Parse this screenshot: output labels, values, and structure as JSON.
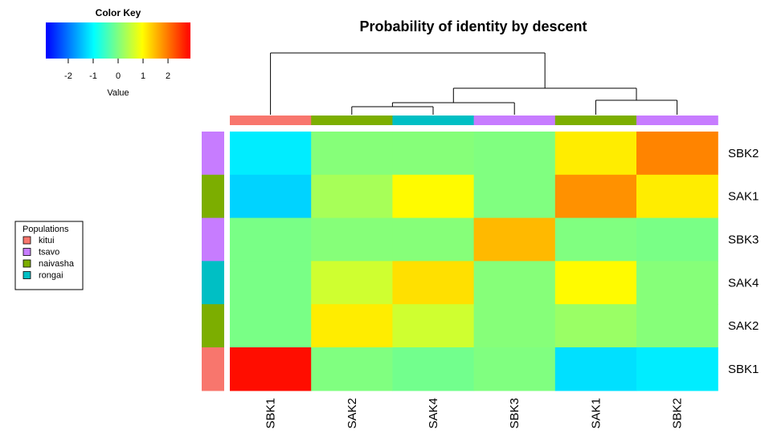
{
  "chart_data": {
    "type": "heatmap",
    "title": "Probability of identity by descent",
    "columns": [
      "SBK1",
      "SAK2",
      "SAK4",
      "SBK3",
      "SAK1",
      "SBK2"
    ],
    "rows": [
      "SBK2",
      "SAK1",
      "SBK3",
      "SAK4",
      "SAK2",
      "SBK1"
    ],
    "column_groups": [
      "kitui",
      "naivasha",
      "rongai",
      "tsavo",
      "naivasha",
      "tsavo"
    ],
    "row_groups": [
      "tsavo",
      "naivasha",
      "tsavo",
      "rongai",
      "naivasha",
      "kitui"
    ],
    "values": [
      [
        -1.1,
        0.05,
        0.05,
        0.0,
        1.1,
        1.9
      ],
      [
        -1.3,
        0.3,
        1.0,
        0.0,
        1.8,
        1.1
      ],
      [
        -0.05,
        0.05,
        0.05,
        1.5,
        0.0,
        -0.05
      ],
      [
        -0.05,
        0.6,
        1.2,
        0.05,
        1.0,
        0.05
      ],
      [
        -0.05,
        1.1,
        0.6,
        0.05,
        0.2,
        0.05
      ],
      [
        2.8,
        0.0,
        -0.1,
        0.0,
        -1.2,
        -1.1
      ]
    ],
    "color_key": {
      "title": "Color Key",
      "xlabel": "Value",
      "range": [
        -2.9,
        2.9
      ],
      "ticks": [
        -2,
        -1,
        0,
        1,
        2
      ],
      "colors": [
        "#0000ff",
        "#00ffff",
        "#ffff00",
        "#ff0000"
      ]
    },
    "legend": {
      "title": "Populations",
      "placement": "left",
      "entries": [
        {
          "label": "kitui",
          "color": "#f8766d"
        },
        {
          "label": "tsavo",
          "color": "#c77cff"
        },
        {
          "label": "naivasha",
          "color": "#7cae00"
        },
        {
          "label": "rongai",
          "color": "#00bfc4"
        }
      ]
    },
    "column_dendrogram": "(SBK1,(((SAK2,SAK4),SBK3),(SAK1,SBK2)))"
  }
}
